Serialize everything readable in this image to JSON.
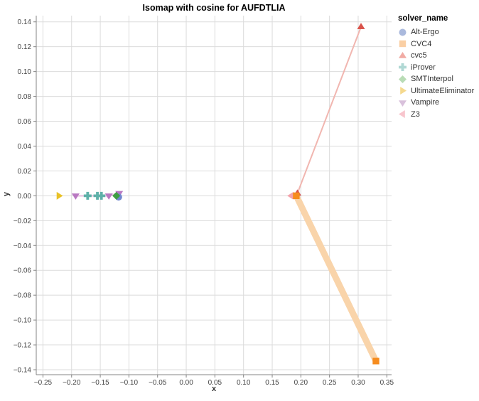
{
  "title": "Isomap with cosine for AUFDTLIA",
  "legend": {
    "title": "solver_name"
  },
  "chart_data": {
    "type": "scatter",
    "title": "Isomap with cosine for AUFDTLIA",
    "xlabel": "x",
    "ylabel": "y",
    "xlim": [
      -0.2617,
      0.3583
    ],
    "ylim": [
      -0.144,
      0.145
    ],
    "grid": true,
    "legend_position": "right",
    "x_ticks": [
      -0.25,
      -0.2,
      -0.15,
      -0.1,
      -0.05,
      0.0,
      0.05,
      0.1,
      0.15,
      0.2,
      0.25,
      0.3,
      0.35
    ],
    "y_ticks": [
      0.14,
      0.12,
      0.1,
      0.08,
      0.06,
      0.04,
      0.02,
      0.0,
      -0.02,
      -0.04,
      -0.06,
      -0.08,
      -0.1,
      -0.12,
      -0.14
    ],
    "series": [
      {
        "name": "Alt-Ergo",
        "marker": "circle",
        "color": "#7187cf",
        "legend_color": "#aab9dd",
        "points": [
          [
            -0.118,
            -0.001
          ]
        ]
      },
      {
        "name": "CVC4",
        "marker": "square",
        "color": "#f68c1e",
        "legend_color": "#facfa4",
        "points": [
          [
            0.192,
            0.0
          ],
          [
            0.331,
            -0.133
          ]
        ],
        "line": {
          "color": "#f9d4aa",
          "width": 9
        }
      },
      {
        "name": "cvc5",
        "marker": "triangle-up",
        "color": "#d9534b",
        "legend_color": "#f1aba4",
        "points": [
          [
            0.194,
            0.002
          ],
          [
            0.305,
            0.136
          ]
        ],
        "line": {
          "color": "#f1b6b0",
          "width": 2
        }
      },
      {
        "name": "iProver",
        "marker": "cross",
        "color": "#5fb1a9",
        "legend_color": "#b0d8d4",
        "points": [
          [
            -0.172,
            0.0
          ],
          [
            -0.155,
            0.0
          ],
          [
            -0.148,
            0.0
          ]
        ]
      },
      {
        "name": "SMTInterpol",
        "marker": "diamond",
        "color": "#3e9e42",
        "legend_color": "#b9dcb6",
        "points": [
          [
            -0.122,
            0.0
          ]
        ]
      },
      {
        "name": "UltimateEliminator",
        "marker": "triangle-right",
        "color": "#e9c126",
        "legend_color": "#f5d98e",
        "points": [
          [
            -0.222,
            0.0
          ]
        ]
      },
      {
        "name": "Vampire",
        "marker": "triangle-down",
        "color": "#b979c2",
        "legend_color": "#d9c1dc",
        "points": [
          [
            -0.193,
            0.0
          ],
          [
            -0.135,
            0.0
          ],
          [
            -0.117,
            0.002
          ]
        ],
        "line": {
          "color": "#eccae3",
          "width": 2.5
        }
      },
      {
        "name": "Z3",
        "marker": "triangle-left",
        "color": "#f3a2ab",
        "legend_color": "#f8c5cd",
        "points": [
          [
            0.183,
            0.0
          ]
        ]
      }
    ]
  },
  "style": {
    "grid_color": "#dbdbdb",
    "axis_color": "#848484",
    "tick_label_color": "#444444"
  }
}
